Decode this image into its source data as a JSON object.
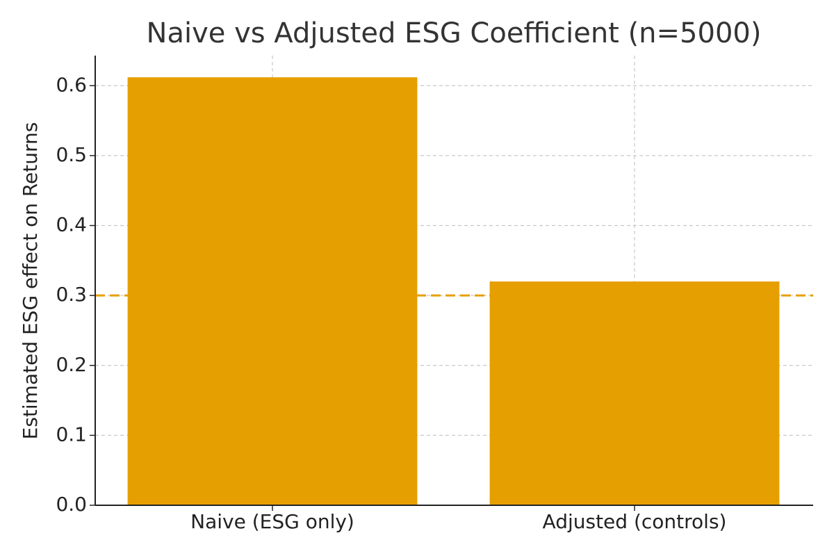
{
  "chart_data": {
    "type": "bar",
    "title": "Naive vs Adjusted ESG Coefficient (n=5000)",
    "ylabel": "Estimated ESG effect on Returns",
    "categories": [
      "Naive (ESG only)",
      "Adjusted (controls)"
    ],
    "values": [
      0.612,
      0.32
    ],
    "color": "#e69f00",
    "ylim": [
      0,
      0.643
    ],
    "yticks": [
      {
        "value": 0,
        "label": "0.0"
      },
      0.1,
      0.2,
      0.3,
      0.4,
      0.5,
      0.6
    ],
    "reference_line": 0.3,
    "reference_color": "#e69f00",
    "grid": true
  }
}
